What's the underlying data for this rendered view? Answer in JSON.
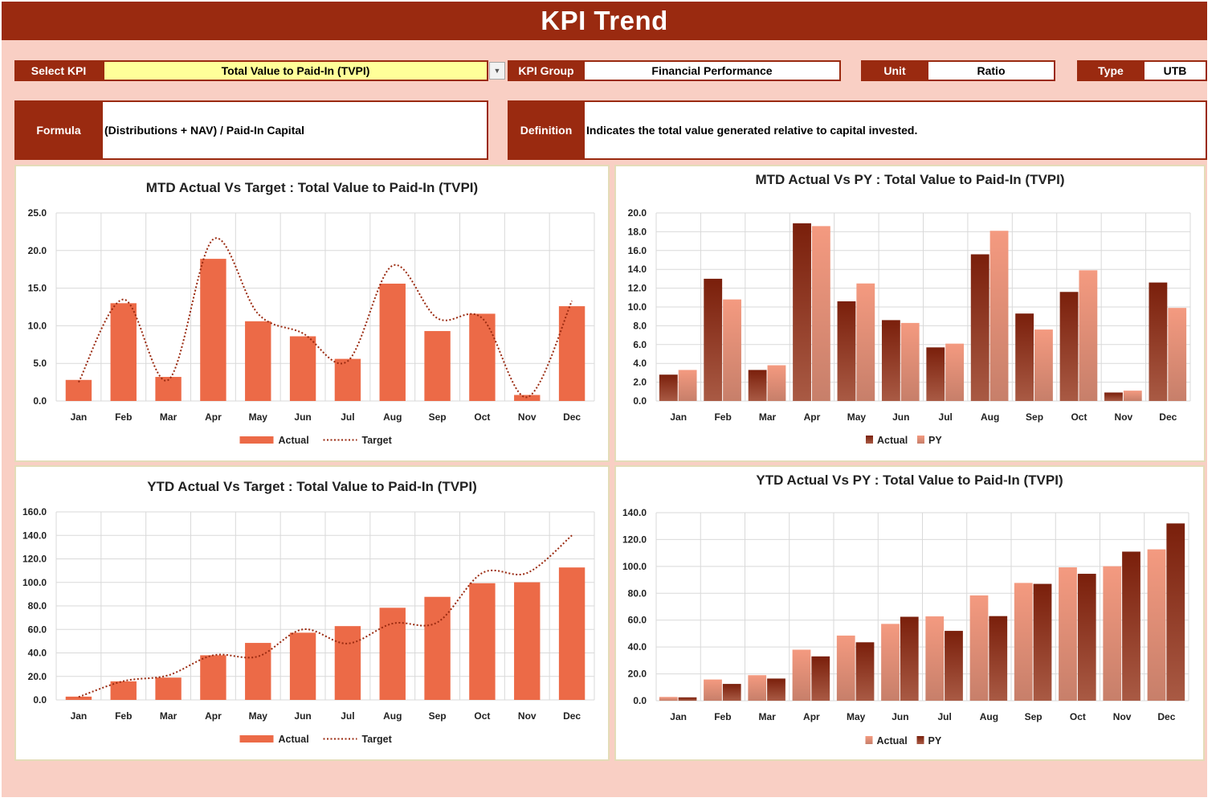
{
  "page": {
    "title": "KPI Trend"
  },
  "controls": {
    "select_kpi_label": "Select KPI",
    "select_kpi_value": "Total Value to Paid-In (TVPI)",
    "kpi_group_label": "KPI Group",
    "kpi_group_value": "Financial Performance",
    "unit_label": "Unit",
    "unit_value": "Ratio",
    "type_label": "Type",
    "type_value": "UTB",
    "formula_label": "Formula",
    "formula_value": "(Distributions + NAV) / Paid-In Capital",
    "definition_label": "Definition",
    "definition_value": "Indicates the total value generated relative to capital invested."
  },
  "colors": {
    "brand": "#9a2a10",
    "background": "#f9cfc4",
    "actual_orange": "#ec6a47",
    "target_line": "#9a2a10",
    "dark_bar": "#7e200c",
    "light_bar": "#f29a80",
    "input_yellow": "#ffff99"
  },
  "chart_data": [
    {
      "id": "mtd-target",
      "type": "bar",
      "title": "MTD Actual Vs Target : Total Value to Paid-In (TVPI)",
      "categories": [
        "Jan",
        "Feb",
        "Mar",
        "Apr",
        "May",
        "Jun",
        "Jul",
        "Aug",
        "Sep",
        "Oct",
        "Nov",
        "Dec"
      ],
      "ylim": [
        0,
        25
      ],
      "yticks": [
        "0.0",
        "5.0",
        "10.0",
        "15.0",
        "20.0",
        "25.0"
      ],
      "series": [
        {
          "name": "Actual",
          "kind": "bar",
          "color": "#ec6a47",
          "values": [
            2.8,
            13.0,
            3.2,
            18.9,
            10.6,
            8.6,
            5.6,
            15.6,
            9.3,
            11.6,
            0.8,
            12.6
          ]
        },
        {
          "name": "Target",
          "kind": "line-dotted",
          "color": "#9a2a10",
          "values": [
            2.5,
            13.5,
            2.8,
            21.5,
            11.6,
            9.0,
            5.3,
            18.0,
            11.0,
            11.0,
            0.5,
            13.3
          ]
        }
      ],
      "legend": "bottom",
      "grid": true
    },
    {
      "id": "mtd-py",
      "type": "bar",
      "title": "MTD Actual Vs PY : Total Value to Paid-In (TVPI)",
      "categories": [
        "Jan",
        "Feb",
        "Mar",
        "Apr",
        "May",
        "Jun",
        "Jul",
        "Aug",
        "Sep",
        "Oct",
        "Nov",
        "Dec"
      ],
      "ylim": [
        0,
        20
      ],
      "yticks": [
        "0.0",
        "2.0",
        "4.0",
        "6.0",
        "8.0",
        "10.0",
        "12.0",
        "14.0",
        "16.0",
        "18.0",
        "20.0"
      ],
      "series": [
        {
          "name": "Actual",
          "kind": "bar",
          "color": "#7e200c",
          "values": [
            2.8,
            13.0,
            3.3,
            18.9,
            10.6,
            8.6,
            5.7,
            15.6,
            9.3,
            11.6,
            0.9,
            12.6
          ]
        },
        {
          "name": "PY",
          "kind": "bar",
          "color": "#f29a80",
          "values": [
            3.3,
            10.8,
            3.8,
            18.6,
            12.5,
            8.3,
            6.1,
            18.1,
            7.6,
            13.9,
            1.1,
            9.9
          ]
        }
      ],
      "legend": "bottom",
      "grid": true
    },
    {
      "id": "ytd-target",
      "type": "bar",
      "title": "YTD Actual Vs Target : Total Value to Paid-In (TVPI)",
      "categories": [
        "Jan",
        "Feb",
        "Mar",
        "Apr",
        "May",
        "Jun",
        "Jul",
        "Aug",
        "Sep",
        "Oct",
        "Nov",
        "Dec"
      ],
      "ylim": [
        0,
        160
      ],
      "yticks": [
        "0.0",
        "20.0",
        "40.0",
        "60.0",
        "80.0",
        "100.0",
        "120.0",
        "140.0",
        "160.0"
      ],
      "series": [
        {
          "name": "Actual",
          "kind": "bar",
          "color": "#ec6a47",
          "values": [
            2.8,
            15.8,
            19.0,
            38.0,
            48.5,
            57.2,
            62.8,
            78.4,
            87.7,
            99.3,
            100.1,
            112.7
          ]
        },
        {
          "name": "Target",
          "kind": "line-dotted",
          "color": "#9a2a10",
          "values": [
            2.5,
            16.0,
            21.0,
            38.0,
            37.0,
            60.0,
            48.0,
            65.0,
            66.0,
            108.0,
            108.0,
            140.0
          ]
        }
      ],
      "legend": "bottom",
      "grid": true
    },
    {
      "id": "ytd-py",
      "type": "bar",
      "title": "YTD Actual Vs PY : Total Value to Paid-In (TVPI)",
      "categories": [
        "Jan",
        "Feb",
        "Mar",
        "Apr",
        "May",
        "Jun",
        "Jul",
        "Aug",
        "Sep",
        "Oct",
        "Nov",
        "Dec"
      ],
      "ylim": [
        0,
        140
      ],
      "yticks": [
        "0.0",
        "20.0",
        "40.0",
        "60.0",
        "80.0",
        "100.0",
        "120.0",
        "140.0"
      ],
      "series": [
        {
          "name": "Actual",
          "kind": "bar",
          "color": "#f29a80",
          "values": [
            2.8,
            15.8,
            19.0,
            38.0,
            48.5,
            57.2,
            62.8,
            78.4,
            87.7,
            99.3,
            100.1,
            112.7
          ]
        },
        {
          "name": "PY",
          "kind": "bar",
          "color": "#7e200c",
          "values": [
            2.5,
            12.5,
            16.5,
            33.0,
            43.5,
            62.5,
            52.0,
            63.0,
            87.0,
            94.5,
            111.0,
            132.0
          ]
        }
      ],
      "legend": "bottom",
      "grid": true
    }
  ]
}
